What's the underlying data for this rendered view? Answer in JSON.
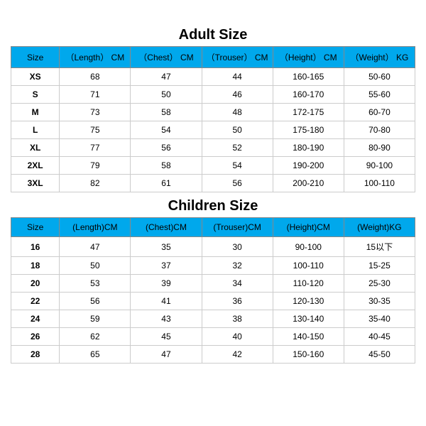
{
  "styling": {
    "header_bg": "#00a8ec",
    "border_color_header": "#888888",
    "border_color_cell": "#cccccc",
    "title_fontsize": 20,
    "header_fontsize": 12,
    "cell_fontsize": 12,
    "background": "#ffffff"
  },
  "adult": {
    "title": "Adult Size",
    "columns": [
      "Size",
      "（Length） CM",
      "（Chest） CM",
      "（Trouser） CM",
      "（Height） CM",
      "（Weight） KG"
    ],
    "col_widths_pct": [
      12,
      17.6,
      17.6,
      17.6,
      17.6,
      17.6
    ],
    "rows": [
      [
        "XS",
        "68",
        "47",
        "44",
        "160-165",
        "50-60"
      ],
      [
        "S",
        "71",
        "50",
        "46",
        "160-170",
        "55-60"
      ],
      [
        "M",
        "73",
        "58",
        "48",
        "172-175",
        "60-70"
      ],
      [
        "L",
        "75",
        "54",
        "50",
        "175-180",
        "70-80"
      ],
      [
        "XL",
        "77",
        "56",
        "52",
        "180-190",
        "80-90"
      ],
      [
        "2XL",
        "79",
        "58",
        "54",
        "190-200",
        "90-100"
      ],
      [
        "3XL",
        "82",
        "61",
        "56",
        "200-210",
        "100-110"
      ]
    ]
  },
  "children": {
    "title": "Children Size",
    "columns": [
      "Size",
      "(Length)CM",
      "(Chest)CM",
      "(Trouser)CM",
      "(Height)CM",
      "(Weight)KG"
    ],
    "col_widths_pct": [
      12,
      17.6,
      17.6,
      17.6,
      17.6,
      17.6
    ],
    "rows": [
      [
        "16",
        "47",
        "35",
        "30",
        "90-100",
        "15以下"
      ],
      [
        "18",
        "50",
        "37",
        "32",
        "100-110",
        "15-25"
      ],
      [
        "20",
        "53",
        "39",
        "34",
        "110-120",
        "25-30"
      ],
      [
        "22",
        "56",
        "41",
        "36",
        "120-130",
        "30-35"
      ],
      [
        "24",
        "59",
        "43",
        "38",
        "130-140",
        "35-40"
      ],
      [
        "26",
        "62",
        "45",
        "40",
        "140-150",
        "40-45"
      ],
      [
        "28",
        "65",
        "47",
        "42",
        "150-160",
        "45-50"
      ]
    ]
  }
}
